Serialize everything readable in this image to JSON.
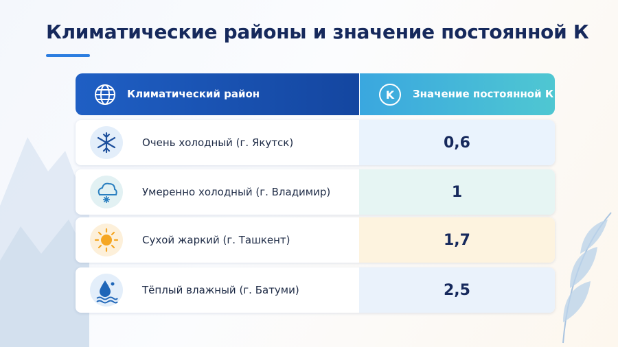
{
  "header": {
    "title": "Климатические районы и значение постоянной К"
  },
  "table": {
    "columns": [
      "Климатический район",
      "Значение постоянной К"
    ],
    "value_icon_label": "K",
    "rows": [
      [
        "Очень холодный (г. Якутск)",
        "0,6"
      ],
      [
        "Умеренно холодный (г. Владимир)",
        "1"
      ],
      [
        "Сухой жаркий (г. Ташкент)",
        "1,7"
      ],
      [
        "Тёплый влажный (г. Батуми)",
        "2,5"
      ]
    ]
  }
}
